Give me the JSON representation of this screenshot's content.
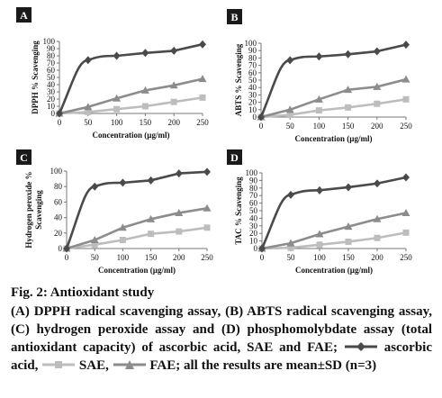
{
  "chart_data": [
    {
      "type": "line",
      "panel_label": "A",
      "ylabel": "DPPH % Scavenging",
      "xlabel": "Concentration (µg/ml)",
      "x": [
        0,
        50,
        100,
        150,
        200,
        250
      ],
      "xlim": [
        0,
        250
      ],
      "ylim": [
        0,
        100
      ],
      "yticks": [
        0,
        10,
        20,
        30,
        40,
        50,
        60,
        70,
        80,
        90,
        100
      ],
      "grid": false,
      "series": [
        {
          "values": [
            0,
            74,
            80,
            84,
            87,
            96
          ],
          "color": "#4a4a4a",
          "marker": "diamond"
        },
        {
          "values": [
            0,
            2,
            6,
            10,
            16,
            22
          ],
          "color": "#bdbdbd",
          "marker": "square"
        },
        {
          "values": [
            0,
            9,
            21,
            32,
            39,
            48
          ],
          "color": "#8c8c8c",
          "marker": "triangle"
        }
      ]
    },
    {
      "type": "line",
      "panel_label": "B",
      "ylabel": "ABTS % Scavenging",
      "xlabel": "Concentration (µg/ml)",
      "x": [
        0,
        50,
        100,
        150,
        200,
        250
      ],
      "xlim": [
        0,
        250
      ],
      "ylim": [
        0,
        100
      ],
      "yticks": [
        0,
        10,
        20,
        30,
        40,
        50,
        60,
        70,
        80,
        90,
        100
      ],
      "grid": false,
      "series": [
        {
          "values": [
            0,
            77,
            82,
            85,
            89,
            98
          ],
          "color": "#4a4a4a",
          "marker": "diamond"
        },
        {
          "values": [
            0,
            3,
            9,
            13,
            18,
            24
          ],
          "color": "#bdbdbd",
          "marker": "square"
        },
        {
          "values": [
            0,
            10,
            24,
            37,
            41,
            51
          ],
          "color": "#8c8c8c",
          "marker": "triangle"
        }
      ]
    },
    {
      "type": "line",
      "panel_label": "C",
      "ylabel": "Hydrogen peroxide % Scavenging",
      "xlabel": "Concentration (µg/ml)",
      "x": [
        0,
        50,
        100,
        150,
        200,
        250
      ],
      "xlim": [
        0,
        250
      ],
      "ylim": [
        0,
        100
      ],
      "yticks": [
        0,
        20,
        40,
        60,
        80,
        100
      ],
      "grid": false,
      "series": [
        {
          "values": [
            0,
            80,
            85,
            88,
            97,
            99
          ],
          "color": "#4a4a4a",
          "marker": "diamond"
        },
        {
          "values": [
            0,
            5,
            11,
            19,
            22,
            27
          ],
          "color": "#bdbdbd",
          "marker": "square"
        },
        {
          "values": [
            0,
            11,
            27,
            38,
            46,
            52
          ],
          "color": "#8c8c8c",
          "marker": "triangle"
        }
      ]
    },
    {
      "type": "line",
      "panel_label": "D",
      "ylabel": "TAC % Scavenging",
      "xlabel": "Concentration (µg/ml)",
      "x": [
        0,
        50,
        100,
        150,
        200,
        250
      ],
      "xlim": [
        0,
        250
      ],
      "ylim": [
        0,
        100
      ],
      "yticks": [
        0,
        10,
        20,
        30,
        40,
        50,
        60,
        70,
        80,
        90,
        100
      ],
      "grid": false,
      "series": [
        {
          "values": [
            0,
            71,
            77,
            81,
            86,
            94
          ],
          "color": "#4a4a4a",
          "marker": "diamond"
        },
        {
          "values": [
            0,
            1,
            5,
            9,
            14,
            21
          ],
          "color": "#bdbdbd",
          "marker": "square"
        },
        {
          "values": [
            0,
            7,
            19,
            29,
            39,
            47
          ],
          "color": "#8c8c8c",
          "marker": "triangle"
        }
      ]
    }
  ],
  "caption": {
    "title": "Fig. 2: Antioxidant study",
    "text_before_legend": "(A) DPPH radical scavenging assay, (B) ABTS radical scavenging assay, (C) hydrogen peroxide assay and (D) phosphomolybdate assay (total antioxidant capacity) of ascorbic acid, SAE and FAE;",
    "legend_ascorbic": "ascorbic acid,",
    "legend_sae": "SAE,",
    "legend_fae": "FAE; all the results are mean±SD (n=3)"
  }
}
